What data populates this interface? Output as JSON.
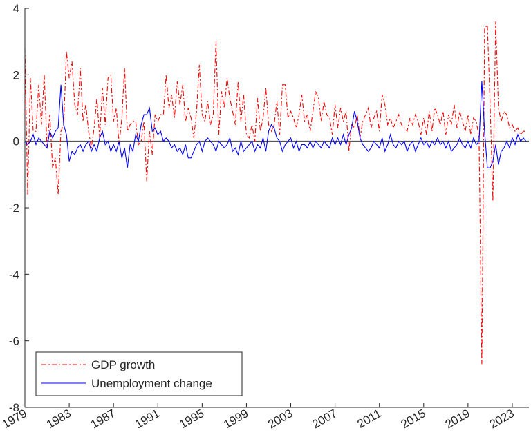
{
  "chart_data": {
    "type": "line",
    "x": [
      1979,
      1979.25,
      1979.5,
      1979.75,
      1980,
      1980.25,
      1980.5,
      1980.75,
      1981,
      1981.25,
      1981.5,
      1981.75,
      1982,
      1982.25,
      1982.5,
      1982.75,
      1983,
      1983.25,
      1983.5,
      1983.75,
      1984,
      1984.25,
      1984.5,
      1984.75,
      1985,
      1985.25,
      1985.5,
      1985.75,
      1986,
      1986.25,
      1986.5,
      1986.75,
      1987,
      1987.25,
      1987.5,
      1987.75,
      1988,
      1988.25,
      1988.5,
      1988.75,
      1989,
      1989.25,
      1989.5,
      1989.75,
      1990,
      1990.25,
      1990.5,
      1990.75,
      1991,
      1991.25,
      1991.5,
      1991.75,
      1992,
      1992.25,
      1992.5,
      1992.75,
      1993,
      1993.25,
      1993.5,
      1993.75,
      1994,
      1994.25,
      1994.5,
      1994.75,
      1995,
      1995.25,
      1995.5,
      1995.75,
      1996,
      1996.25,
      1996.5,
      1996.75,
      1997,
      1997.25,
      1997.5,
      1997.75,
      1998,
      1998.25,
      1998.5,
      1998.75,
      1999,
      1999.25,
      1999.5,
      1999.75,
      2000,
      2000.25,
      2000.5,
      2000.75,
      2001,
      2001.25,
      2001.5,
      2001.75,
      2002,
      2002.25,
      2002.5,
      2002.75,
      2003,
      2003.25,
      2003.5,
      2003.75,
      2004,
      2004.25,
      2004.5,
      2004.75,
      2005,
      2005.25,
      2005.5,
      2005.75,
      2006,
      2006.25,
      2006.5,
      2006.75,
      2007,
      2007.25,
      2007.5,
      2007.75,
      2008,
      2008.25,
      2008.5,
      2008.75,
      2009,
      2009.25,
      2009.5,
      2009.75,
      2010,
      2010.25,
      2010.5,
      2010.75,
      2011,
      2011.25,
      2011.5,
      2011.75,
      2012,
      2012.25,
      2012.5,
      2012.75,
      2013,
      2013.25,
      2013.5,
      2013.75,
      2014,
      2014.25,
      2014.5,
      2014.75,
      2015,
      2015.25,
      2015.5,
      2015.75,
      2016,
      2016.25,
      2016.5,
      2016.75,
      2017,
      2017.25,
      2017.5,
      2017.75,
      2018,
      2018.25,
      2018.5,
      2018.75,
      2019,
      2019.25,
      2019.5,
      2019.75,
      2020,
      2020.25,
      2020.5,
      2020.75,
      2021,
      2021.25,
      2021.5,
      2021.75,
      2022,
      2022.25,
      2022.5,
      2022.75,
      2023,
      2023.25,
      2023.5,
      2023.75,
      2024,
      2024.25
    ],
    "series": [
      {
        "name": "GDP growth",
        "color": "#ff0000",
        "linestyle": "dash-dot",
        "values": [
          2.8,
          -1.6,
          1.9,
          0.3,
          0.3,
          1.7,
          0.5,
          2.0,
          -0.2,
          0.8,
          -0.8,
          -0.5,
          -1.6,
          0.3,
          0.5,
          2.7,
          1.9,
          2.4,
          1.1,
          0.8,
          2.2,
          0.6,
          1.1,
          0.3,
          -0.2,
          0.4,
          1.3,
          0.1,
          1.6,
          0.5,
          1.9,
          2.0,
          0.6,
          1.0,
          -0.1,
          0.7,
          2.2,
          0.3,
          0.5,
          0.6,
          0.6,
          -0.1,
          0.0,
          0.6,
          -1.2,
          0.3,
          -0.4,
          0.8,
          0.6,
          0.8,
          0.8,
          2.0,
          1.0,
          1.4,
          0.7,
          1.8,
          1.1,
          1.7,
          0.6,
          1.0,
          0.7,
          0.1,
          0.9,
          2.3,
          0.8,
          0.6,
          1.2,
          0.5,
          0.8,
          3.0,
          0.2,
          1.5,
          1.0,
          1.9,
          1.3,
          0.9,
          0.5,
          1.8,
          0.6,
          1.4,
          0.2,
          0.1,
          0.5,
          0.0,
          1.3,
          0.3,
          0.7,
          1.6,
          0.5,
          0.3,
          0.5,
          1.2,
          0.2,
          1.7,
          1.7,
          0.7,
          0.9,
          0.7,
          0.4,
          0.8,
          1.4,
          0.6,
          0.8,
          0.3,
          0.9,
          1.5,
          1.3,
          0.6,
          1.2,
          0.8,
          0.7,
          0.2,
          1.1,
          0.4,
          1.0,
          0.6,
          0.9,
          -0.3,
          0.5,
          0.4,
          0.8,
          0.1,
          0.6,
          0.8,
          1.0,
          0.4,
          0.7,
          0.9,
          0.3,
          1.4,
          1.1,
          0.5,
          0.7,
          0.4,
          0.6,
          0.8,
          0.5,
          0.4,
          0.3,
          0.7,
          0.5,
          0.8,
          0.6,
          0.2,
          0.7,
          0.2,
          0.9,
          0.3,
          1.0,
          0.8,
          0.5,
          0.9,
          0.2,
          0.8,
          0.5,
          1.1,
          0.4,
          0.9,
          0.6,
          0.3,
          0.8,
          0.2,
          0.7,
          0.6,
          0.1,
          -6.7,
          3.4,
          3.5,
          1.1,
          -1.8,
          3.6,
          1.0,
          0.6,
          0.9,
          0.8,
          0.4,
          0.5,
          0.3,
          0.4,
          0.2,
          0.3,
          0.3
        ]
      },
      {
        "name": "Unemployment change",
        "color": "#0000ff",
        "linestyle": "solid",
        "values": [
          0.0,
          -0.1,
          0.0,
          0.2,
          -0.1,
          0.1,
          0.0,
          -0.1,
          -0.2,
          0.3,
          0.1,
          0.3,
          0.4,
          1.7,
          0.5,
          0.2,
          -0.6,
          -0.3,
          -0.4,
          -0.2,
          -0.1,
          -0.3,
          -0.1,
          0.0,
          -0.3,
          -0.1,
          -0.3,
          0.1,
          0.3,
          -0.1,
          0.0,
          -0.3,
          -0.1,
          -0.3,
          0.0,
          -0.5,
          -0.2,
          -0.8,
          -0.1,
          -0.3,
          0.2,
          0.0,
          0.5,
          0.8,
          0.8,
          1.0,
          0.3,
          0.4,
          0.2,
          0.3,
          0.0,
          0.1,
          0.0,
          -0.2,
          -0.1,
          -0.3,
          -0.2,
          -0.4,
          -0.1,
          -0.5,
          -0.5,
          -0.3,
          -0.1,
          0.0,
          -0.3,
          0.0,
          0.1,
          0.0,
          -0.1,
          -0.3,
          0.0,
          -0.1,
          -0.2,
          -0.1,
          0.1,
          -0.3,
          -0.2,
          -0.4,
          0.0,
          -0.3,
          -0.2,
          -0.1,
          0.0,
          -0.3,
          -0.1,
          -0.2,
          0.1,
          -0.3,
          0.3,
          0.5,
          0.4,
          0.1,
          0.0,
          -0.3,
          -0.1,
          0.0,
          0.1,
          -0.2,
          0.0,
          -0.3,
          -0.1,
          -0.1,
          -0.2,
          0.0,
          -0.2,
          0.0,
          -0.1,
          -0.2,
          0.0,
          -0.1,
          -0.2,
          0.1,
          -0.1,
          0.1,
          -0.1,
          0.2,
          -0.1,
          0.2,
          0.4,
          0.9,
          0.6,
          0.1,
          -0.1,
          -0.2,
          -0.3,
          -0.2,
          0.0,
          -0.1,
          -0.2,
          0.1,
          -0.3,
          -0.1,
          0.2,
          -0.1,
          -0.2,
          0.0,
          -0.1,
          0.0,
          -0.3,
          -0.1,
          0.0,
          -0.3,
          -0.1,
          0.1,
          -0.1,
          0.0,
          -0.2,
          0.0,
          -0.1,
          0.1,
          -0.1,
          0.0,
          -0.2,
          0.0,
          -0.3,
          -0.2,
          -0.1,
          0.1,
          -0.1,
          -0.2,
          0.0,
          -0.2,
          0.1,
          -0.1,
          0.0,
          1.8,
          0.3,
          -0.8,
          -0.8,
          -0.6,
          -0.1,
          -0.7,
          -0.3,
          -0.2,
          0.0,
          -0.2,
          0.1,
          -0.1,
          0.2,
          0.0,
          0.1,
          0.0
        ]
      }
    ],
    "xlim": [
      1979,
      2024.5
    ],
    "xticks": [
      1979,
      1983,
      1987,
      1991,
      1995,
      1999,
      2003,
      2007,
      2011,
      2015,
      2019,
      2023
    ],
    "ylim": [
      -8,
      4
    ],
    "yticks": [
      4,
      2,
      0,
      -2,
      -4,
      -6,
      -8
    ],
    "grid": false,
    "legend": "lower-left"
  }
}
